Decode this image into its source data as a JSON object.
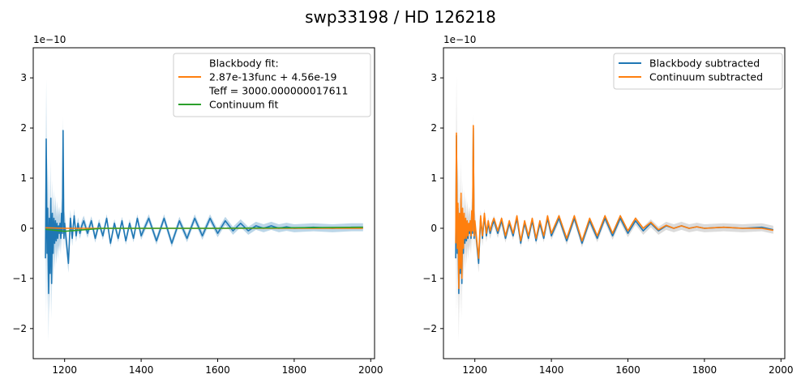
{
  "figure": {
    "suptitle": "swp33198 / HD 126218"
  },
  "colors": {
    "blue": "#1f77b4",
    "orange": "#ff7f0e",
    "green": "#2ca02c"
  },
  "chart_data": [
    {
      "type": "line",
      "title": "",
      "xlabel": "",
      "ylabel": "",
      "offset_text": "1e−10",
      "xlim": [
        1118,
        2010
      ],
      "ylim": [
        -2.6,
        3.6
      ],
      "xticks": [
        1200,
        1400,
        1600,
        1800,
        2000
      ],
      "xtick_labels": [
        "1200",
        "1400",
        "1600",
        "1800",
        "2000"
      ],
      "yticks": [
        -2,
        -1,
        0,
        1,
        2,
        3
      ],
      "ytick_labels": [
        "−2",
        "−1",
        "0",
        "1",
        "2",
        "3"
      ],
      "legend_position": "upper-right",
      "legend": [
        {
          "name": "Blackbody fit:",
          "color": "none"
        },
        {
          "name": "2.87e-13func + 4.56e-19",
          "color": "#ff7f0e"
        },
        {
          "name": "Teff = 3000.000000017611",
          "color": "none"
        },
        {
          "name": "Continuum fit",
          "color": "#2ca02c"
        }
      ],
      "series": [
        {
          "color": "#1f77b4",
          "x": [
            1150,
            1152,
            1154,
            1156,
            1158,
            1160,
            1162,
            1164,
            1166,
            1168,
            1170,
            1172,
            1174,
            1176,
            1178,
            1180,
            1182,
            1184,
            1186,
            1188,
            1190,
            1192,
            1194,
            1196,
            1198,
            1200,
            1205,
            1210,
            1215,
            1220,
            1225,
            1230,
            1235,
            1240,
            1245,
            1250,
            1260,
            1270,
            1280,
            1290,
            1300,
            1310,
            1320,
            1330,
            1340,
            1350,
            1360,
            1370,
            1380,
            1390,
            1400,
            1420,
            1440,
            1460,
            1480,
            1500,
            1520,
            1540,
            1560,
            1580,
            1600,
            1620,
            1640,
            1660,
            1680,
            1700,
            1720,
            1740,
            1760,
            1780,
            1800,
            1850,
            1900,
            1950,
            1980
          ],
          "y": [
            -0.6,
            1.78,
            -0.5,
            0.4,
            -1.3,
            0.2,
            -0.9,
            0.6,
            -1.1,
            0.3,
            -0.5,
            0.2,
            -0.3,
            0.15,
            -0.25,
            0.1,
            -0.2,
            0.05,
            -0.1,
            0.1,
            -0.2,
            0.3,
            -0.1,
            1.95,
            -0.2,
            0.1,
            -0.3,
            -0.7,
            0.2,
            -0.2,
            0.25,
            -0.15,
            0.1,
            -0.1,
            0.05,
            0.15,
            -0.1,
            0.15,
            -0.2,
            0.1,
            -0.15,
            0.2,
            -0.3,
            0.1,
            -0.2,
            0.15,
            -0.25,
            0.1,
            -0.2,
            0.2,
            -0.15,
            0.2,
            -0.25,
            0.2,
            -0.3,
            0.15,
            -0.2,
            0.2,
            -0.15,
            0.2,
            -0.1,
            0.15,
            -0.05,
            0.1,
            -0.05,
            0.05,
            0.0,
            0.05,
            0.0,
            0.03,
            0.0,
            0.02,
            0.0,
            0.02,
            0.02
          ]
        },
        {
          "color": "#ff7f0e",
          "x": [
            1150,
            1200,
            1300,
            1400,
            1600,
            1800,
            1980
          ],
          "y": [
            0.01,
            0.0,
            0.0,
            0.0,
            0.0,
            0.0,
            0.0
          ]
        },
        {
          "color": "#2ca02c",
          "x": [
            1150,
            1200,
            1250,
            1300,
            1400,
            1600,
            1800,
            1980
          ],
          "y": [
            -0.02,
            -0.06,
            -0.03,
            0.0,
            0.0,
            0.0,
            0.01,
            0.02
          ]
        }
      ]
    },
    {
      "type": "line",
      "title": "",
      "xlabel": "",
      "ylabel": "",
      "offset_text": "1e−10",
      "xlim": [
        1118,
        2010
      ],
      "ylim": [
        -2.6,
        3.6
      ],
      "xticks": [
        1200,
        1400,
        1600,
        1800,
        2000
      ],
      "xtick_labels": [
        "1200",
        "1400",
        "1600",
        "1800",
        "2000"
      ],
      "yticks": [
        -2,
        -1,
        0,
        1,
        2,
        3
      ],
      "ytick_labels": [
        "−2",
        "−1",
        "0",
        "1",
        "2",
        "3"
      ],
      "legend_position": "upper-right",
      "legend": [
        {
          "name": "Blackbody subtracted",
          "color": "#1f77b4"
        },
        {
          "name": "Continuum subtracted",
          "color": "#ff7f0e"
        }
      ],
      "series": [
        {
          "name": "Blackbody subtracted",
          "color": "#1f77b4",
          "x": [
            1150,
            1152,
            1154,
            1156,
            1158,
            1160,
            1162,
            1164,
            1166,
            1168,
            1170,
            1172,
            1174,
            1176,
            1178,
            1180,
            1182,
            1184,
            1186,
            1188,
            1190,
            1192,
            1194,
            1196,
            1198,
            1200,
            1205,
            1210,
            1215,
            1220,
            1225,
            1230,
            1235,
            1240,
            1245,
            1250,
            1260,
            1270,
            1280,
            1290,
            1300,
            1310,
            1320,
            1330,
            1340,
            1350,
            1360,
            1370,
            1380,
            1390,
            1400,
            1420,
            1440,
            1460,
            1480,
            1500,
            1520,
            1540,
            1560,
            1580,
            1600,
            1620,
            1640,
            1660,
            1680,
            1700,
            1720,
            1740,
            1760,
            1780,
            1800,
            1850,
            1900,
            1950,
            1980
          ],
          "y": [
            -0.6,
            1.85,
            -0.5,
            0.4,
            -1.3,
            0.2,
            -0.9,
            0.6,
            -1.1,
            0.3,
            -0.5,
            0.2,
            -0.3,
            0.15,
            -0.25,
            0.1,
            -0.2,
            0.05,
            -0.1,
            0.1,
            -0.2,
            0.3,
            -0.1,
            2.0,
            -0.2,
            0.1,
            -0.3,
            -0.7,
            0.2,
            -0.2,
            0.25,
            -0.15,
            0.1,
            -0.1,
            0.05,
            0.15,
            -0.1,
            0.15,
            -0.2,
            0.1,
            -0.15,
            0.2,
            -0.3,
            0.1,
            -0.2,
            0.15,
            -0.25,
            0.1,
            -0.2,
            0.2,
            -0.15,
            0.2,
            -0.25,
            0.2,
            -0.3,
            0.15,
            -0.2,
            0.2,
            -0.15,
            0.2,
            -0.1,
            0.15,
            -0.05,
            0.1,
            -0.05,
            0.05,
            0.0,
            0.05,
            0.0,
            0.03,
            0.0,
            0.02,
            0.0,
            0.02,
            -0.03
          ]
        },
        {
          "name": "Continuum subtracted",
          "color": "#ff7f0e",
          "x": [
            1150,
            1152,
            1154,
            1156,
            1158,
            1160,
            1162,
            1164,
            1166,
            1168,
            1170,
            1172,
            1174,
            1176,
            1178,
            1180,
            1182,
            1184,
            1186,
            1188,
            1190,
            1192,
            1194,
            1196,
            1198,
            1200,
            1205,
            1210,
            1215,
            1220,
            1225,
            1230,
            1235,
            1240,
            1245,
            1250,
            1260,
            1270,
            1280,
            1290,
            1300,
            1310,
            1320,
            1330,
            1340,
            1350,
            1360,
            1370,
            1380,
            1390,
            1400,
            1420,
            1440,
            1460,
            1480,
            1500,
            1520,
            1540,
            1560,
            1580,
            1600,
            1620,
            1640,
            1660,
            1680,
            1700,
            1720,
            1740,
            1760,
            1780,
            1800,
            1850,
            1900,
            1950,
            1980
          ],
          "y": [
            -0.3,
            1.9,
            -0.4,
            0.5,
            -1.2,
            0.3,
            -0.8,
            0.7,
            -1.0,
            0.4,
            -0.4,
            0.3,
            -0.2,
            0.2,
            -0.2,
            0.15,
            -0.15,
            0.1,
            -0.05,
            0.15,
            -0.15,
            0.35,
            -0.05,
            2.05,
            -0.15,
            0.15,
            -0.25,
            -0.6,
            0.25,
            -0.15,
            0.3,
            -0.1,
            0.15,
            -0.05,
            0.1,
            0.2,
            -0.05,
            0.2,
            -0.15,
            0.15,
            -0.1,
            0.25,
            -0.25,
            0.15,
            -0.15,
            0.2,
            -0.2,
            0.15,
            -0.15,
            0.25,
            -0.1,
            0.25,
            -0.2,
            0.25,
            -0.25,
            0.2,
            -0.15,
            0.25,
            -0.1,
            0.25,
            -0.05,
            0.2,
            0.0,
            0.12,
            -0.03,
            0.06,
            0.0,
            0.05,
            0.0,
            0.03,
            0.0,
            0.02,
            0.0,
            0.0,
            -0.04
          ]
        }
      ]
    }
  ]
}
